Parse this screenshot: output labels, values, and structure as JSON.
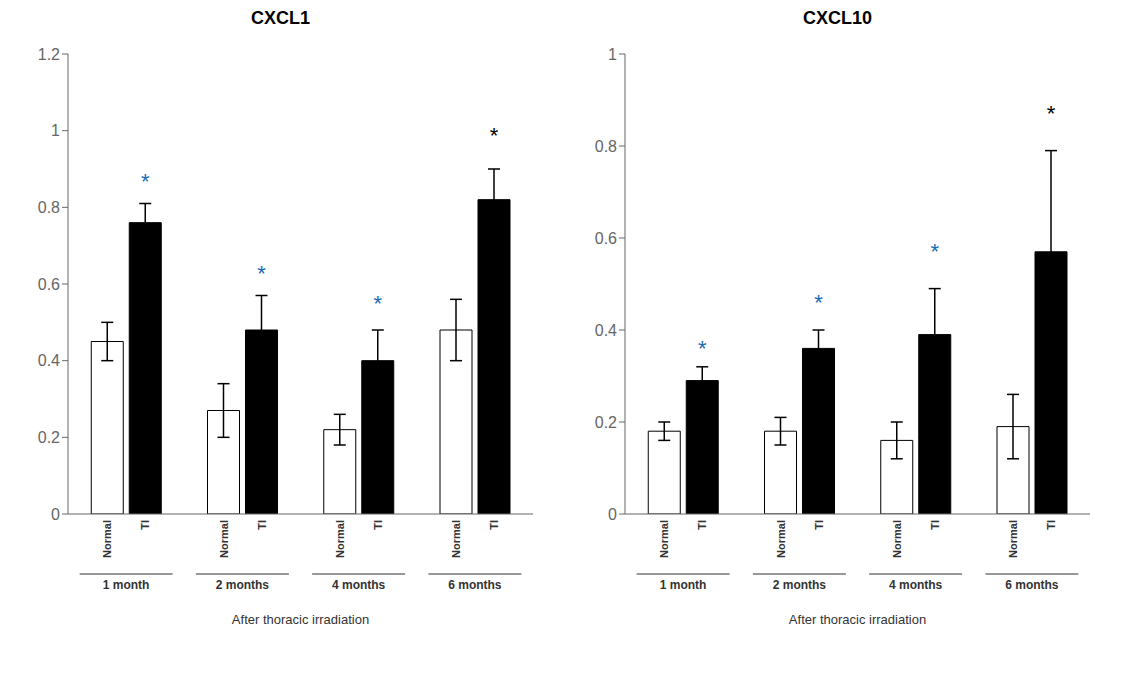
{
  "chart_data": [
    {
      "type": "bar",
      "title": "CXCL1",
      "xlabel": "After thoracic irradiation",
      "categories": [
        "1 month",
        "2 months",
        "4 months",
        "6 months"
      ],
      "series": [
        {
          "name": "Normal",
          "color": "#ffffff",
          "values": [
            0.45,
            0.27,
            0.22,
            0.48
          ],
          "errors": [
            0.05,
            0.07,
            0.04,
            0.08
          ]
        },
        {
          "name": "TI",
          "color": "#000000",
          "values": [
            0.76,
            0.48,
            0.4,
            0.82
          ],
          "errors": [
            0.05,
            0.09,
            0.08,
            0.08
          ]
        }
      ],
      "annotations": [
        {
          "text": "*",
          "x": "1 month",
          "series": "TI",
          "y": 0.88,
          "color": "#1a6bb5"
        },
        {
          "text": "*",
          "x": "2 months",
          "series": "TI",
          "y": 0.64,
          "color": "#1a6bb5"
        },
        {
          "text": "*",
          "x": "4 months",
          "series": "TI",
          "y": 0.56,
          "color": "#1a6bb5"
        },
        {
          "text": "*",
          "x": "6 months",
          "series": "TI",
          "y": 1.0,
          "color": "#000000"
        }
      ],
      "ylim": [
        0,
        1.2
      ],
      "yticks": [
        0,
        0.2,
        0.4,
        0.6,
        0.8,
        1.0,
        1.2
      ],
      "grid": false
    },
    {
      "type": "bar",
      "title": "CXCL10",
      "xlabel": "After thoracic irradiation",
      "categories": [
        "1 month",
        "2 months",
        "4 months",
        "6 months"
      ],
      "series": [
        {
          "name": "Normal",
          "color": "#ffffff",
          "values": [
            0.18,
            0.18,
            0.16,
            0.19
          ],
          "errors": [
            0.02,
            0.03,
            0.04,
            0.07
          ]
        },
        {
          "name": "TI",
          "color": "#000000",
          "values": [
            0.29,
            0.36,
            0.39,
            0.57
          ],
          "errors": [
            0.03,
            0.04,
            0.1,
            0.22
          ]
        }
      ],
      "annotations": [
        {
          "text": "*",
          "x": "1 month",
          "series": "TI",
          "y": 0.37,
          "color": "#1a6bb5"
        },
        {
          "text": "*",
          "x": "2 months",
          "series": "TI",
          "y": 0.47,
          "color": "#1a6bb5"
        },
        {
          "text": "*",
          "x": "4 months",
          "series": "TI",
          "y": 0.58,
          "color": "#1a6bb5"
        },
        {
          "text": "*",
          "x": "6 months",
          "series": "TI",
          "y": 0.88,
          "color": "#000000"
        }
      ],
      "ylim": [
        0,
        1.0
      ],
      "yticks": [
        0,
        0.2,
        0.4,
        0.6,
        0.8,
        1.0
      ],
      "grid": false
    }
  ]
}
